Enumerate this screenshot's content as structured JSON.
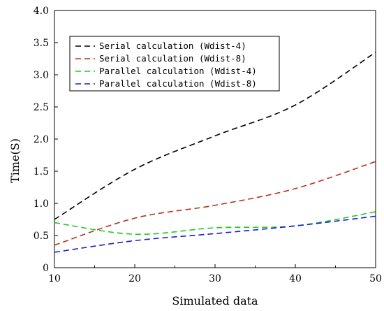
{
  "chart_data": {
    "type": "line",
    "title": "",
    "xlabel": "Simulated data",
    "ylabel": "Time(S)",
    "xlim": [
      10,
      50
    ],
    "ylim": [
      0,
      4.0
    ],
    "xticks": [
      10,
      20,
      30,
      40,
      50
    ],
    "yticks": [
      0,
      0.5,
      1.0,
      1.5,
      2.0,
      2.5,
      3.0,
      3.5,
      4.0
    ],
    "xtick_labels": [
      "10",
      "20",
      "30",
      "40",
      "50"
    ],
    "ytick_labels": [
      "0",
      "0.5",
      "1.0",
      "1.5",
      "2.0",
      "2.5",
      "3.0",
      "3.5",
      "4.0"
    ],
    "grid": false,
    "legend_position": "top-left",
    "series": [
      {
        "name": "Serial calculation (Wdist-4)",
        "color": "#000000",
        "dash": "dashed",
        "x": [
          10,
          20,
          30,
          40,
          50
        ],
        "y": [
          0.75,
          1.53,
          2.05,
          2.53,
          3.35
        ]
      },
      {
        "name": "Serial calculation (Wdist-8)",
        "color": "#b5311c",
        "dash": "dashed",
        "x": [
          10,
          20,
          30,
          40,
          50
        ],
        "y": [
          0.35,
          0.77,
          0.97,
          1.23,
          1.65
        ]
      },
      {
        "name": "Parallel calculation (Wdist-4)",
        "color": "#1ecb1e",
        "dash": "dashed",
        "x": [
          10,
          20,
          30,
          40,
          50
        ],
        "y": [
          0.7,
          0.52,
          0.62,
          0.65,
          0.87
        ]
      },
      {
        "name": "Parallel calculation (Wdist-8)",
        "color": "#1c1cd6",
        "dash": "dashed",
        "x": [
          10,
          20,
          30,
          40,
          50
        ],
        "y": [
          0.24,
          0.42,
          0.53,
          0.65,
          0.8
        ]
      }
    ]
  }
}
